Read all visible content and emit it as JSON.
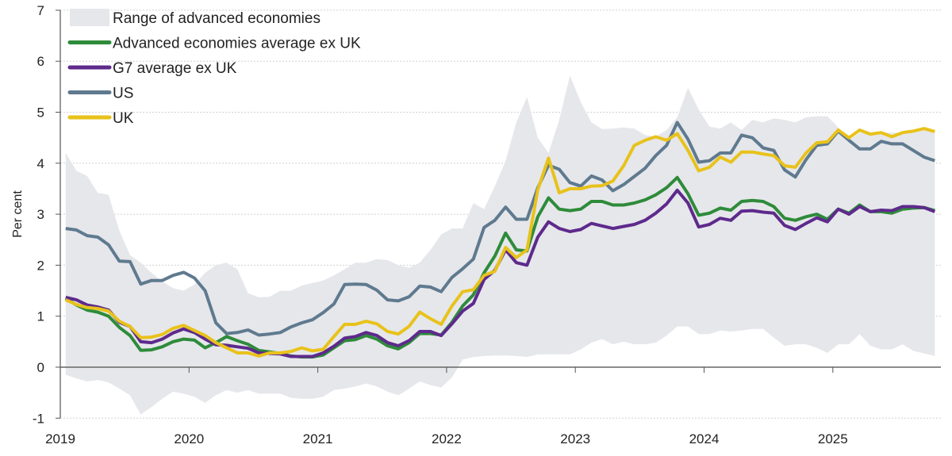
{
  "chart_data": {
    "type": "line",
    "title": "",
    "xlabel": "",
    "ylabel": "Per cent",
    "ylim": [
      -1,
      7
    ],
    "yticks": [
      "-1",
      "0",
      "1",
      "2",
      "3",
      "4",
      "5",
      "6",
      "7"
    ],
    "xticks": [
      "2019",
      "2020",
      "2021",
      "2022",
      "2023",
      "2024",
      "2025"
    ],
    "x_start": "2019-01",
    "frequency": "monthly",
    "grid": true,
    "legend_position": "top-left",
    "range": {
      "name": "Range of advanced economies",
      "color": "#e6e7eb",
      "lower": [
        -0.15,
        -0.22,
        -0.28,
        -0.25,
        -0.3,
        -0.42,
        -0.55,
        -0.93,
        -0.78,
        -0.62,
        -0.48,
        -0.52,
        -0.58,
        -0.7,
        -0.55,
        -0.45,
        -0.5,
        -0.45,
        -0.52,
        -0.52,
        -0.52,
        -0.6,
        -0.62,
        -0.62,
        -0.58,
        -0.45,
        -0.42,
        -0.38,
        -0.32,
        -0.38,
        -0.48,
        -0.55,
        -0.42,
        -0.28,
        -0.35,
        -0.4,
        -0.2,
        0.15,
        0.2,
        0.22,
        0.23,
        0.23,
        0.22,
        0.2,
        0.25,
        0.25,
        0.25,
        0.25,
        0.35,
        0.48,
        0.55,
        0.45,
        0.5,
        0.45,
        0.45,
        0.48,
        0.62,
        0.8,
        0.8,
        0.65,
        0.65,
        0.72,
        0.7,
        0.72,
        0.75,
        0.75,
        0.58,
        0.42,
        0.45,
        0.45,
        0.38,
        0.28,
        0.45,
        0.45,
        0.65,
        0.42,
        0.35,
        0.35,
        0.45,
        0.32,
        0.27,
        0.22
      ],
      "upper": [
        4.2,
        3.85,
        3.75,
        3.42,
        3.38,
        2.68,
        2.2,
        2.05,
        1.85,
        1.68,
        1.55,
        1.5,
        1.62,
        1.85,
        2.0,
        2.05,
        1.92,
        1.45,
        1.37,
        1.38,
        1.5,
        1.5,
        1.6,
        1.65,
        1.7,
        1.8,
        1.92,
        2.05,
        2.05,
        2.12,
        2.1,
        2.0,
        1.95,
        2.05,
        2.3,
        2.6,
        2.72,
        2.72,
        3.22,
        3.1,
        3.55,
        4.05,
        4.8,
        5.3,
        4.5,
        4.2,
        4.85,
        5.72,
        5.2,
        4.8,
        4.67,
        4.68,
        4.7,
        4.68,
        4.55,
        4.52,
        4.65,
        4.9,
        5.48,
        5.05,
        4.72,
        4.68,
        4.8,
        4.65,
        4.85,
        4.8,
        4.88,
        4.85,
        4.8,
        4.9,
        4.92,
        4.92,
        4.7,
        4.45,
        4.6,
        4.6,
        4.6,
        4.6,
        4.6,
        4.62,
        4.65,
        4.62
      ]
    },
    "series": [
      {
        "name": "Advanced economies average ex UK",
        "color": "#2e8b3a",
        "values": [
          1.35,
          1.22,
          1.12,
          1.08,
          1.0,
          0.78,
          0.62,
          0.33,
          0.34,
          0.4,
          0.5,
          0.55,
          0.53,
          0.38,
          0.48,
          0.6,
          0.52,
          0.45,
          0.33,
          0.3,
          0.27,
          0.22,
          0.2,
          0.2,
          0.24,
          0.38,
          0.52,
          0.54,
          0.62,
          0.55,
          0.42,
          0.36,
          0.48,
          0.66,
          0.66,
          0.63,
          0.88,
          1.2,
          1.42,
          1.85,
          2.18,
          2.63,
          2.3,
          2.28,
          2.95,
          3.32,
          3.1,
          3.07,
          3.1,
          3.25,
          3.25,
          3.18,
          3.18,
          3.22,
          3.28,
          3.38,
          3.52,
          3.72,
          3.4,
          2.98,
          3.02,
          3.12,
          3.08,
          3.25,
          3.27,
          3.25,
          3.15,
          2.92,
          2.88,
          2.95,
          3.0,
          2.9,
          3.1,
          3.02,
          3.18,
          3.05,
          3.05,
          3.02,
          3.1,
          3.12,
          3.13,
          3.07
        ]
      },
      {
        "name": "G7 average ex UK",
        "color": "#5e2a8c",
        "values": [
          1.37,
          1.32,
          1.22,
          1.18,
          1.12,
          0.88,
          0.8,
          0.5,
          0.48,
          0.55,
          0.67,
          0.75,
          0.68,
          0.55,
          0.44,
          0.43,
          0.4,
          0.37,
          0.28,
          0.27,
          0.26,
          0.21,
          0.21,
          0.21,
          0.28,
          0.41,
          0.57,
          0.6,
          0.68,
          0.62,
          0.48,
          0.42,
          0.52,
          0.7,
          0.7,
          0.62,
          0.85,
          1.1,
          1.25,
          1.72,
          1.9,
          2.3,
          2.05,
          2.0,
          2.55,
          2.85,
          2.72,
          2.66,
          2.7,
          2.82,
          2.77,
          2.72,
          2.76,
          2.8,
          2.88,
          3.02,
          3.2,
          3.47,
          3.22,
          2.75,
          2.8,
          2.92,
          2.88,
          3.06,
          3.07,
          3.04,
          3.02,
          2.78,
          2.7,
          2.82,
          2.93,
          2.85,
          3.1,
          3.0,
          3.15,
          3.05,
          3.08,
          3.07,
          3.15,
          3.15,
          3.13,
          3.05
        ]
      },
      {
        "name": "US",
        "color": "#5f7a8f",
        "values": [
          2.72,
          2.69,
          2.58,
          2.55,
          2.4,
          2.08,
          2.07,
          1.63,
          1.7,
          1.7,
          1.8,
          1.86,
          1.75,
          1.5,
          0.87,
          0.66,
          0.68,
          0.73,
          0.63,
          0.65,
          0.68,
          0.79,
          0.87,
          0.93,
          1.07,
          1.24,
          1.62,
          1.63,
          1.62,
          1.51,
          1.32,
          1.3,
          1.38,
          1.59,
          1.57,
          1.48,
          1.76,
          1.93,
          2.12,
          2.74,
          2.88,
          3.14,
          2.9,
          2.9,
          3.52,
          3.96,
          3.88,
          3.62,
          3.55,
          3.75,
          3.67,
          3.46,
          3.58,
          3.74,
          3.9,
          4.15,
          4.35,
          4.8,
          4.47,
          4.02,
          4.05,
          4.2,
          4.2,
          4.55,
          4.5,
          4.3,
          4.25,
          3.87,
          3.73,
          4.07,
          4.35,
          4.38,
          4.63,
          4.45,
          4.28,
          4.28,
          4.43,
          4.38,
          4.38,
          4.25,
          4.12,
          4.05
        ]
      },
      {
        "name": "UK",
        "color": "#e8c21b",
        "values": [
          1.32,
          1.23,
          1.17,
          1.15,
          1.1,
          0.9,
          0.8,
          0.58,
          0.59,
          0.64,
          0.76,
          0.82,
          0.72,
          0.62,
          0.48,
          0.38,
          0.28,
          0.28,
          0.22,
          0.28,
          0.28,
          0.31,
          0.38,
          0.32,
          0.35,
          0.6,
          0.84,
          0.84,
          0.9,
          0.85,
          0.7,
          0.65,
          0.8,
          1.08,
          0.95,
          0.84,
          1.2,
          1.48,
          1.52,
          1.8,
          1.88,
          2.35,
          2.15,
          2.3,
          3.48,
          4.1,
          3.42,
          3.5,
          3.5,
          3.55,
          3.56,
          3.65,
          3.95,
          4.35,
          4.45,
          4.52,
          4.45,
          4.58,
          4.25,
          3.85,
          3.92,
          4.12,
          4.02,
          4.22,
          4.22,
          4.18,
          4.15,
          3.95,
          3.92,
          4.2,
          4.4,
          4.42,
          4.65,
          4.5,
          4.65,
          4.57,
          4.6,
          4.52,
          4.6,
          4.63,
          4.68,
          4.62
        ]
      }
    ]
  }
}
